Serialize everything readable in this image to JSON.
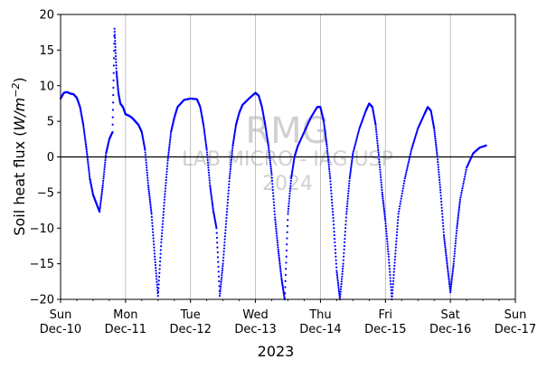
{
  "chart_data": {
    "type": "scatter",
    "xlabel": "2023",
    "ylabel_main": "Soil heat flux (",
    "ylabel_unit_var": "W/m",
    "ylabel_unit_exp": "−2",
    "ylabel_close": ")",
    "ylim": [
      -20,
      20
    ],
    "xlim_days": [
      10,
      17
    ],
    "x_unit": "days of December 2023",
    "yticks": [
      "−20",
      "−15",
      "−10",
      "−5",
      "0",
      "5",
      "10",
      "15",
      "20"
    ],
    "xticks": [
      {
        "day": "Sun",
        "date": "Dec-10"
      },
      {
        "day": "Mon",
        "date": "Dec-11"
      },
      {
        "day": "Tue",
        "date": "Dec-12"
      },
      {
        "day": "Wed",
        "date": "Dec-13"
      },
      {
        "day": "Thu",
        "date": "Dec-14"
      },
      {
        "day": "Fri",
        "date": "Dec-15"
      },
      {
        "day": "Sat",
        "date": "Dec-16"
      },
      {
        "day": "Sun",
        "date": "Dec-17"
      }
    ],
    "grid": "vertical",
    "zero_line": true,
    "marker_color": "#0000ff",
    "watermark": [
      "RMG",
      "LAB MICRO - IAG USP",
      "2024"
    ],
    "series": [
      {
        "points": [
          [
            10.0,
            8.2
          ],
          [
            10.05,
            9.0
          ],
          [
            10.1,
            9.1
          ],
          [
            10.15,
            8.9
          ],
          [
            10.2,
            8.8
          ],
          [
            10.25,
            8.3
          ],
          [
            10.3,
            7.0
          ],
          [
            10.35,
            4.5
          ],
          [
            10.4,
            1.0
          ],
          [
            10.45,
            -3.0
          ],
          [
            10.5,
            -5.3
          ],
          [
            10.55,
            -6.5
          ],
          [
            10.6,
            -7.7
          ],
          [
            10.65,
            -4.0
          ],
          [
            10.7,
            0.5
          ],
          [
            10.75,
            2.5
          ],
          [
            10.8,
            3.5
          ],
          [
            10.83,
            18.0
          ],
          [
            10.86,
            12.0
          ],
          [
            10.89,
            9.0
          ],
          [
            10.92,
            7.5
          ],
          [
            10.96,
            7.0
          ],
          [
            11.0,
            6.0
          ],
          [
            11.05,
            5.8
          ],
          [
            11.1,
            5.5
          ],
          [
            11.15,
            5.0
          ],
          [
            11.2,
            4.5
          ],
          [
            11.25,
            3.5
          ],
          [
            11.3,
            1.0
          ],
          [
            11.35,
            -4.0
          ],
          [
            11.4,
            -8.0
          ],
          [
            11.45,
            -14.0
          ],
          [
            11.5,
            -19.5
          ],
          [
            11.55,
            -12.0
          ],
          [
            11.6,
            -6.0
          ],
          [
            11.65,
            -0.5
          ],
          [
            11.7,
            3.5
          ],
          [
            11.75,
            5.5
          ],
          [
            11.8,
            7.0
          ],
          [
            11.9,
            8.0
          ],
          [
            12.0,
            8.2
          ],
          [
            12.1,
            8.1
          ],
          [
            12.15,
            7.0
          ],
          [
            12.2,
            4.5
          ],
          [
            12.25,
            1.0
          ],
          [
            12.3,
            -4.0
          ],
          [
            12.35,
            -7.5
          ],
          [
            12.4,
            -10.0
          ],
          [
            12.45,
            -19.5
          ],
          [
            12.5,
            -15.0
          ],
          [
            12.55,
            -9.0
          ],
          [
            12.6,
            -3.0
          ],
          [
            12.65,
            1.5
          ],
          [
            12.7,
            4.5
          ],
          [
            12.75,
            6.2
          ],
          [
            12.8,
            7.3
          ],
          [
            12.9,
            8.2
          ],
          [
            13.0,
            9.0
          ],
          [
            13.05,
            8.6
          ],
          [
            13.1,
            7.0
          ],
          [
            13.15,
            4.5
          ],
          [
            13.2,
            1.5
          ],
          [
            13.25,
            -2.5
          ],
          [
            13.3,
            -8.5
          ],
          [
            13.35,
            -13.0
          ],
          [
            13.4,
            -17.0
          ],
          [
            13.45,
            -20.0
          ],
          [
            13.5,
            -8.0
          ],
          [
            13.55,
            -3.0
          ],
          [
            13.6,
            0.0
          ],
          [
            13.65,
            1.5
          ],
          [
            13.75,
            3.5
          ],
          [
            13.85,
            5.5
          ],
          [
            13.95,
            7.0
          ],
          [
            14.0,
            7.0
          ],
          [
            14.05,
            5.0
          ],
          [
            14.1,
            1.5
          ],
          [
            14.15,
            -3.0
          ],
          [
            14.2,
            -9.0
          ],
          [
            14.25,
            -16.0
          ],
          [
            14.3,
            -20.0
          ],
          [
            14.35,
            -15.0
          ],
          [
            14.4,
            -8.0
          ],
          [
            14.45,
            -3.0
          ],
          [
            14.5,
            0.5
          ],
          [
            14.6,
            4.0
          ],
          [
            14.7,
            6.5
          ],
          [
            14.75,
            7.5
          ],
          [
            14.8,
            7.0
          ],
          [
            14.85,
            4.5
          ],
          [
            14.9,
            0.0
          ],
          [
            14.95,
            -5.0
          ],
          [
            15.0,
            -9.0
          ],
          [
            15.05,
            -14.0
          ],
          [
            15.1,
            -20.0
          ],
          [
            15.15,
            -14.0
          ],
          [
            15.2,
            -8.0
          ],
          [
            15.3,
            -3.0
          ],
          [
            15.4,
            1.0
          ],
          [
            15.5,
            4.0
          ],
          [
            15.6,
            6.0
          ],
          [
            15.65,
            7.0
          ],
          [
            15.7,
            6.5
          ],
          [
            15.75,
            4.0
          ],
          [
            15.8,
            0.0
          ],
          [
            15.85,
            -5.0
          ],
          [
            15.9,
            -11.0
          ],
          [
            15.95,
            -15.0
          ],
          [
            16.0,
            -19.0
          ],
          [
            16.05,
            -15.0
          ],
          [
            16.1,
            -10.0
          ],
          [
            16.15,
            -6.0
          ],
          [
            16.25,
            -1.5
          ],
          [
            16.35,
            0.5
          ],
          [
            16.45,
            1.3
          ],
          [
            16.55,
            1.6
          ]
        ]
      }
    ]
  }
}
